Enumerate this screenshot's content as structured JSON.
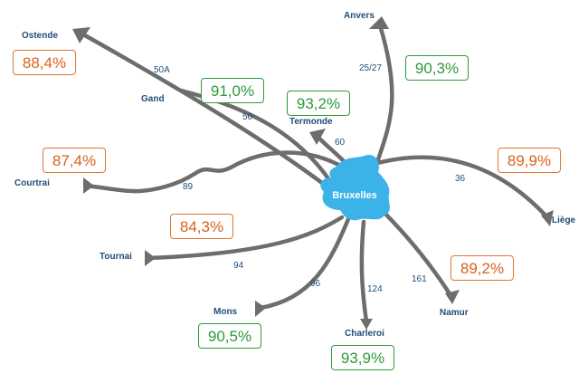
{
  "colors": {
    "road": "#6d6d6d",
    "center": "#3cb3e8",
    "city_text": "#1f4e79",
    "good": "#2e9a3a",
    "bad": "#d9621a"
  },
  "center": {
    "name": "Bruxelles"
  },
  "cities": {
    "ostende": "Ostende",
    "gand": "Gand",
    "anvers": "Anvers",
    "termonde": "Termonde",
    "courtrai": "Courtrai",
    "tournai": "Tournai",
    "mons": "Mons",
    "charleroi": "Charleroi",
    "namur": "Namur",
    "liege": "Liège"
  },
  "roads": {
    "ostende": "50A",
    "gand": "50",
    "anvers": "25/27",
    "termonde": "60",
    "courtrai": "89",
    "tournai": "94",
    "mons": "96",
    "charleroi": "124",
    "namur": "161",
    "liege": "36"
  },
  "percentages": {
    "ostende": "88,4%",
    "gand": "91,0%",
    "termonde": "93,2%",
    "anvers": "90,3%",
    "courtrai": "87,4%",
    "liege": "89,9%",
    "tournai": "84,3%",
    "namur": "89,2%",
    "mons": "90,5%",
    "charleroi": "93,9%"
  },
  "status": {
    "ostende": "bad",
    "gand": "good",
    "termonde": "good",
    "anvers": "good",
    "courtrai": "bad",
    "liege": "bad",
    "tournai": "bad",
    "namur": "bad",
    "mons": "good",
    "charleroi": "good"
  }
}
